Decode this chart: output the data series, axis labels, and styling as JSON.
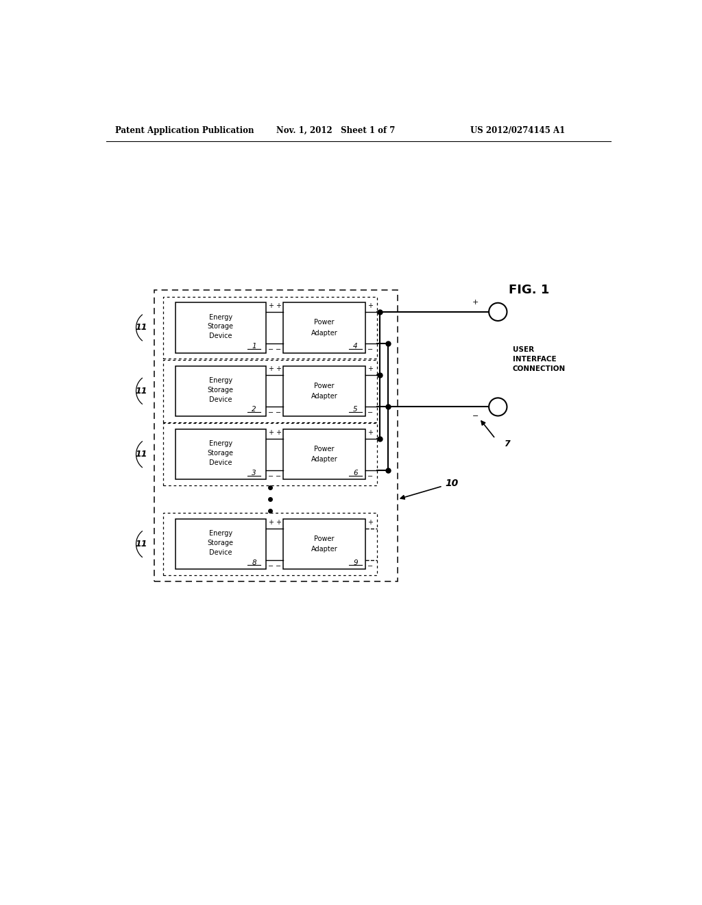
{
  "header_left": "Patent Application Publication",
  "header_mid": "Nov. 1, 2012   Sheet 1 of 7",
  "header_right": "US 2012/0274145 A1",
  "fig_label": "FIG. 1",
  "bg_color": "#ffffff",
  "line_color": "#000000",
  "rows": [
    {
      "esd_label": "1",
      "pa_label": "4",
      "tag": "11",
      "dashed": false
    },
    {
      "esd_label": "2",
      "pa_label": "5",
      "tag": "11",
      "dashed": false
    },
    {
      "esd_label": "3",
      "pa_label": "6",
      "tag": "11",
      "dashed": false
    },
    {
      "esd_label": "8",
      "pa_label": "9",
      "tag": "11",
      "dashed": true
    }
  ],
  "outer_box_label": "10",
  "user_interface_label": "USER\nINTERFACE\nCONNECTION",
  "label_7": "7",
  "page_width": 10.24,
  "page_height": 13.2
}
